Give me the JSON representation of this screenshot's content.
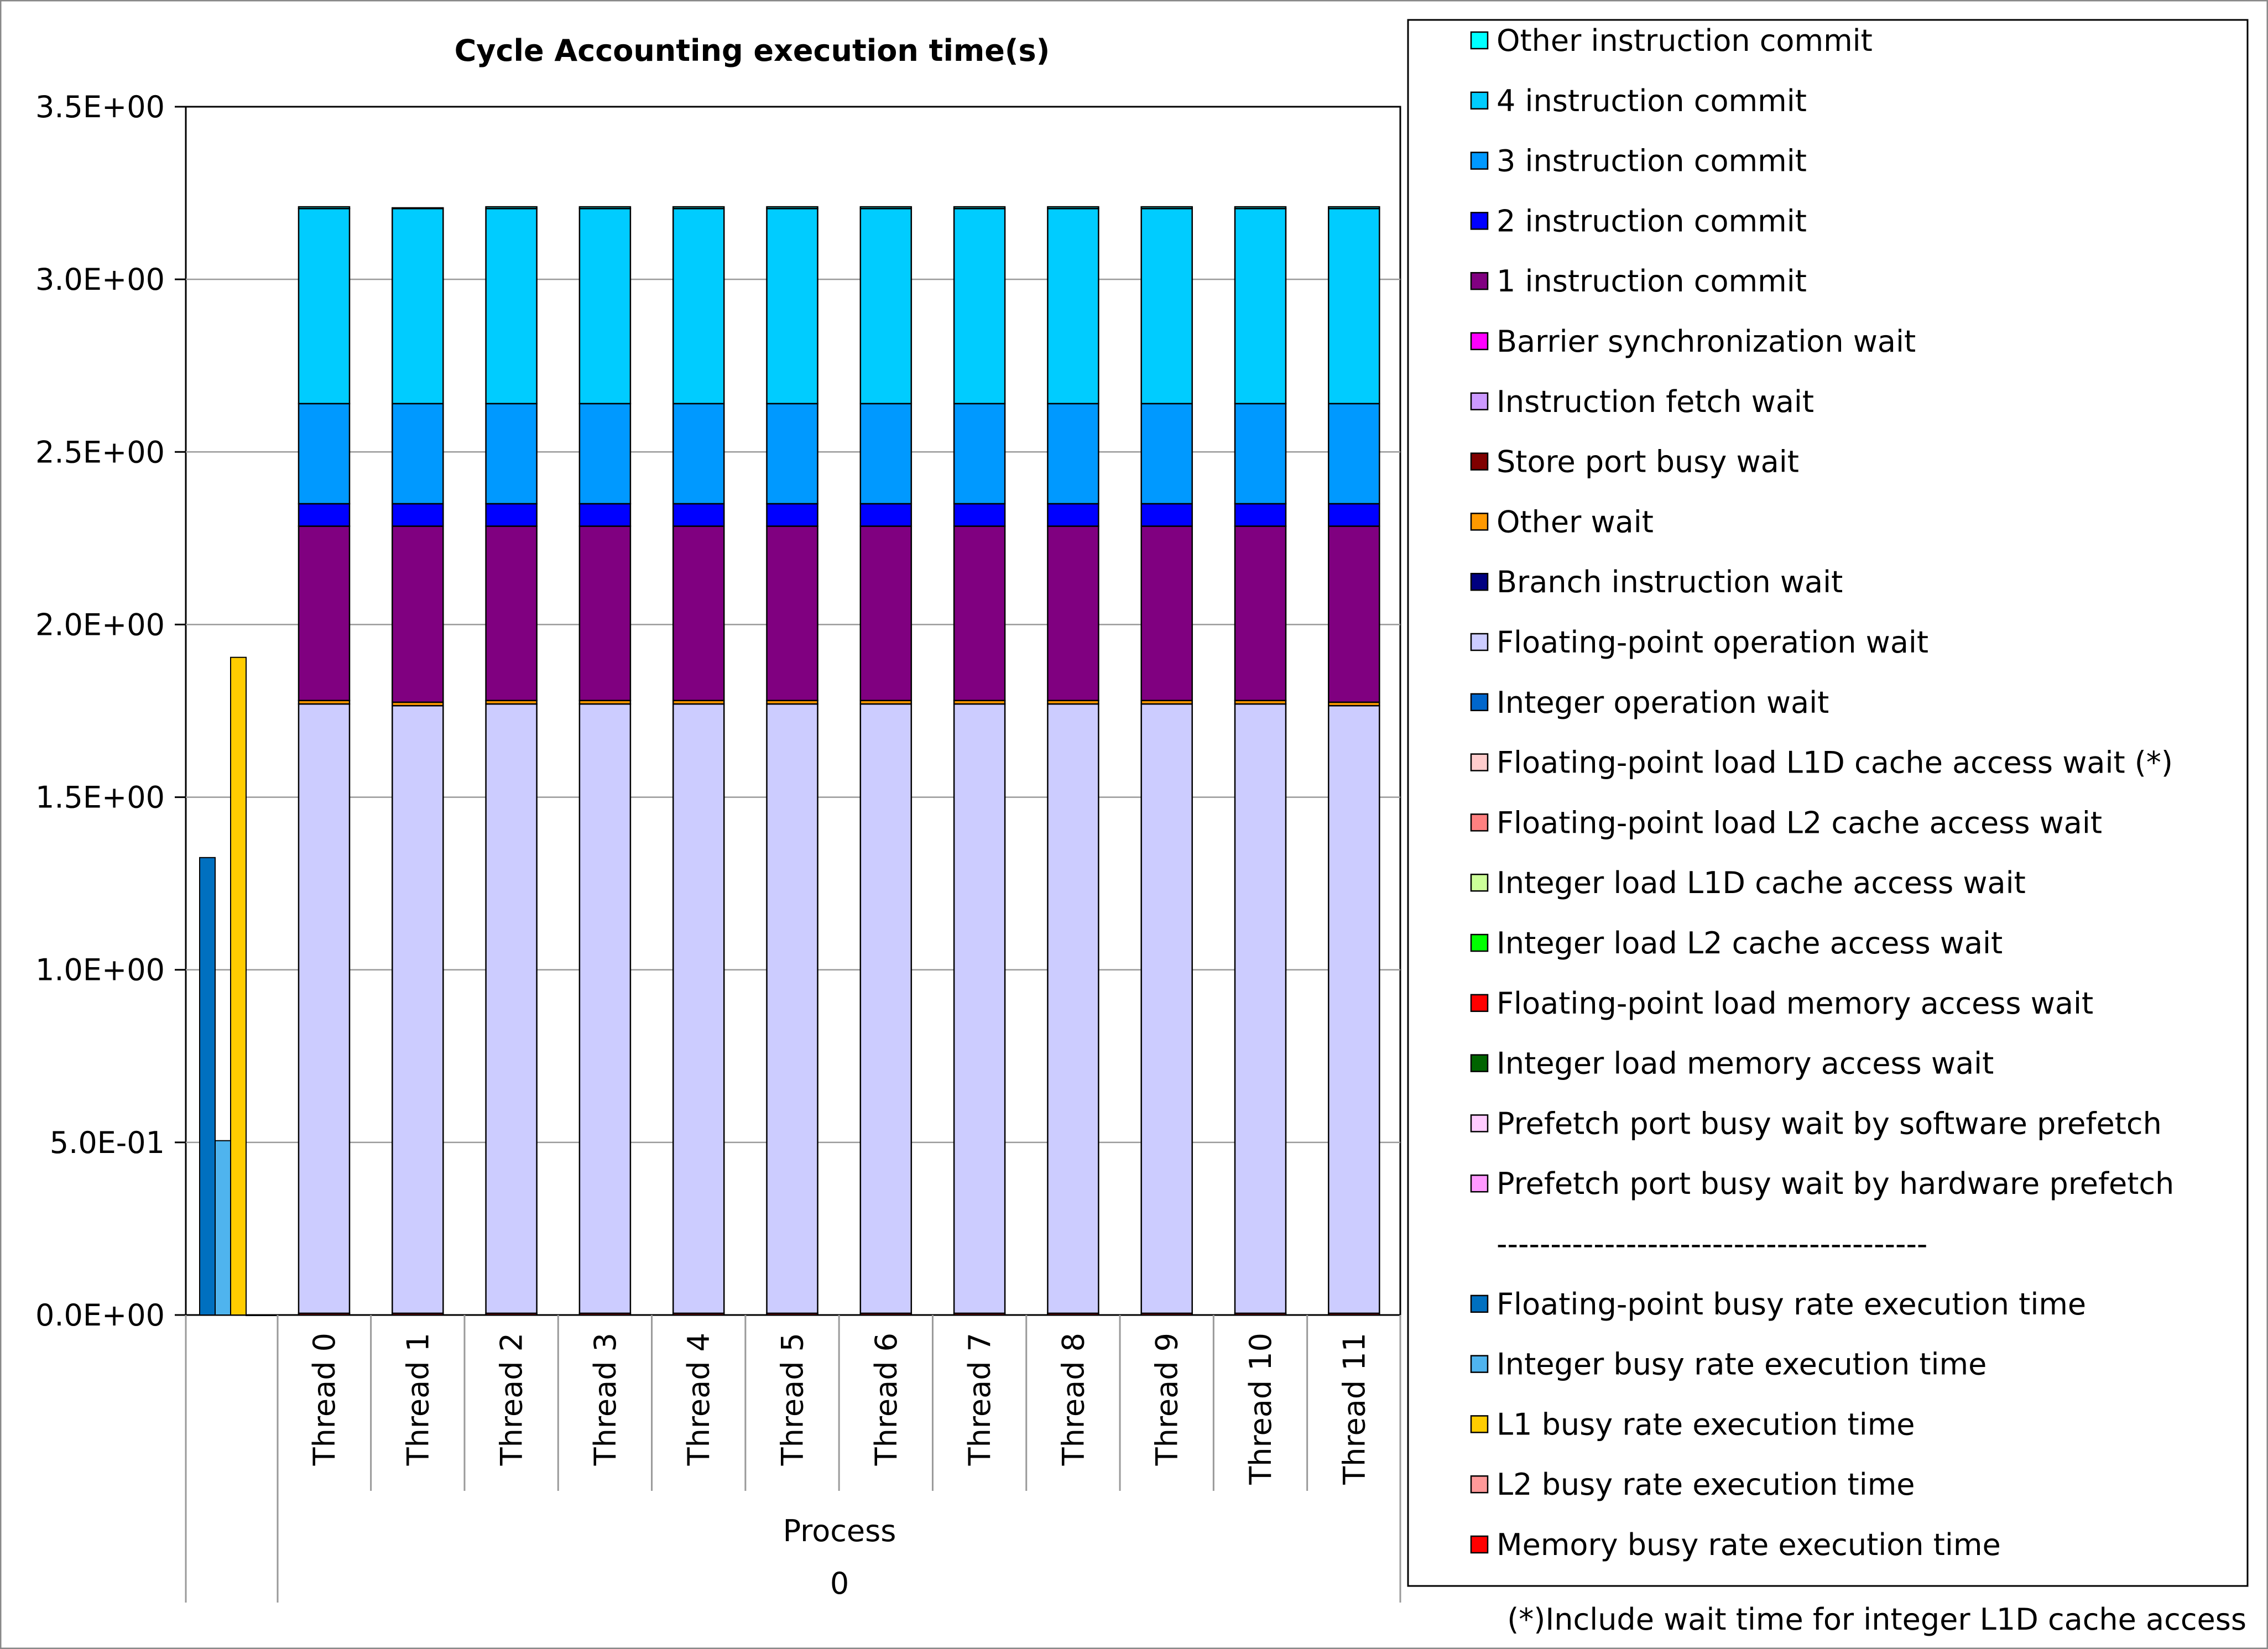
{
  "chart_data": {
    "type": "bar",
    "stacked": true,
    "title": "Cycle Accounting execution time(s)",
    "ylim": [
      0,
      3.5
    ],
    "yticks": [
      "0.0E+00",
      "5.0E-01",
      "1.0E+00",
      "1.5E+00",
      "2.0E+00",
      "2.5E+00",
      "3.0E+00",
      "3.5E+00"
    ],
    "ytick_values": [
      0,
      0.5,
      1.0,
      1.5,
      2.0,
      2.5,
      3.0,
      3.5
    ],
    "grid": true,
    "legend_position": "right",
    "categories": [
      "Thread 0",
      "Thread 1",
      "Thread 2",
      "Thread 3",
      "Thread 4",
      "Thread 5",
      "Thread 6",
      "Thread 7",
      "Thread 8",
      "Thread 9",
      "Thread 10",
      "Thread 11"
    ],
    "group_label_line1": "Process",
    "group_label_line2": "0",
    "stack_series": [
      {
        "name": "Integer load memory access wait",
        "color": "#006400",
        "values": [
          0,
          0,
          0,
          0,
          0,
          0,
          0,
          0,
          0,
          0,
          0,
          0
        ]
      },
      {
        "name": "Floating-point load memory access wait",
        "color": "#ff0000",
        "values": [
          0.005,
          0.005,
          0.005,
          0.005,
          0.005,
          0.005,
          0.005,
          0.005,
          0.005,
          0.005,
          0.005,
          0.005
        ]
      },
      {
        "name": "Floating-point operation wait",
        "color": "#ccccff",
        "values": [
          1.765,
          1.76,
          1.765,
          1.765,
          1.765,
          1.765,
          1.765,
          1.765,
          1.765,
          1.765,
          1.765,
          1.76
        ]
      },
      {
        "name": "Other wait",
        "color": "#ff9900",
        "values": [
          0.01,
          0.01,
          0.01,
          0.01,
          0.01,
          0.01,
          0.01,
          0.01,
          0.01,
          0.01,
          0.01,
          0.01
        ]
      },
      {
        "name": "1 instruction commit",
        "color": "#800080",
        "values": [
          0.505,
          0.51,
          0.505,
          0.505,
          0.505,
          0.505,
          0.505,
          0.505,
          0.505,
          0.505,
          0.505,
          0.51
        ]
      },
      {
        "name": "2 instruction commit",
        "color": "#0000ff",
        "values": [
          0.065,
          0.065,
          0.065,
          0.065,
          0.065,
          0.065,
          0.065,
          0.065,
          0.065,
          0.065,
          0.065,
          0.065
        ]
      },
      {
        "name": "3 instruction commit",
        "color": "#0099ff",
        "values": [
          0.29,
          0.29,
          0.29,
          0.29,
          0.29,
          0.29,
          0.29,
          0.29,
          0.29,
          0.29,
          0.29,
          0.29
        ]
      },
      {
        "name": "4 instruction commit",
        "color": "#00ccff",
        "values": [
          0.565,
          0.565,
          0.565,
          0.565,
          0.565,
          0.565,
          0.565,
          0.565,
          0.565,
          0.565,
          0.565,
          0.565
        ]
      },
      {
        "name": "Other instruction commit",
        "color": "#00ffff",
        "values": [
          0.005,
          0.002,
          0.005,
          0.005,
          0.005,
          0.005,
          0.005,
          0.005,
          0.005,
          0.005,
          0.005,
          0.005
        ]
      }
    ],
    "busy_rate_series": [
      {
        "name": "Floating-point busy rate execution time",
        "color": "#0070c0",
        "value": 1.325
      },
      {
        "name": "Integer busy rate execution time",
        "color": "#4fb4ee",
        "value": 0.505
      },
      {
        "name": "L1 busy rate execution time",
        "color": "#ffcc00",
        "value": 1.905
      },
      {
        "name": "L2 busy rate execution time",
        "color": "#ff9999",
        "value": 0.0
      },
      {
        "name": "Memory busy rate execution time",
        "color": "#ff0000",
        "value": 0.0
      }
    ],
    "legend": [
      {
        "name": "Other instruction commit",
        "color": "#00ffff"
      },
      {
        "name": "4 instruction commit",
        "color": "#00ccff"
      },
      {
        "name": "3 instruction commit",
        "color": "#0099ff"
      },
      {
        "name": "2 instruction commit",
        "color": "#0000ff"
      },
      {
        "name": "1 instruction commit",
        "color": "#800080"
      },
      {
        "name": "Barrier synchronization wait",
        "color": "#ff00ff"
      },
      {
        "name": "Instruction fetch wait",
        "color": "#cc99ff"
      },
      {
        "name": "Store port busy wait",
        "color": "#800000"
      },
      {
        "name": "Other wait",
        "color": "#ff9900"
      },
      {
        "name": "Branch instruction wait",
        "color": "#000080"
      },
      {
        "name": "Floating-point operation wait",
        "color": "#ccccff"
      },
      {
        "name": "Integer operation wait",
        "color": "#0066cc"
      },
      {
        "name": "Floating-point load L1D cache access wait (*)",
        "color": "#ffcccc"
      },
      {
        "name": "Floating-point load L2 cache access wait",
        "color": "#ff8080"
      },
      {
        "name": "Integer load L1D cache access wait",
        "color": "#ccff99"
      },
      {
        "name": "Integer load L2 cache access wait",
        "color": "#00ff00"
      },
      {
        "name": "Floating-point load memory access wait",
        "color": "#ff0000"
      },
      {
        "name": "Integer load memory access wait",
        "color": "#006400"
      },
      {
        "name": "Prefetch port busy wait by software prefetch",
        "color": "#ffccff"
      },
      {
        "name": "Prefetch port busy wait by hardware prefetch",
        "color": "#ff99ff"
      },
      {
        "name": "----------------------------------------",
        "color": ""
      },
      {
        "name": "Floating-point busy rate execution time",
        "color": "#0070c0"
      },
      {
        "name": "Integer busy rate execution time",
        "color": "#4fb4ee"
      },
      {
        "name": "L1 busy rate execution time",
        "color": "#ffcc00"
      },
      {
        "name": "L2 busy rate execution time",
        "color": "#ff9999"
      },
      {
        "name": "Memory busy rate execution time",
        "color": "#ff0000"
      }
    ],
    "footnote": "(*)Include wait time for integer L1D cache access"
  }
}
